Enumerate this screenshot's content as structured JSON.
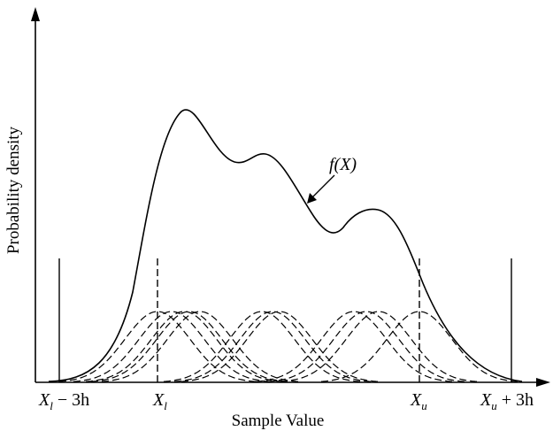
{
  "figure": {
    "ylabel": "Probability density",
    "xlabel": "Sample Value",
    "curve_label": "f(X)"
  },
  "x_ticks": {
    "xl_minus_3h": {
      "var": "X",
      "sub": "l",
      "suffix": " − 3h"
    },
    "xl": {
      "var": "X",
      "sub": "l"
    },
    "xu": {
      "var": "X",
      "sub": "u"
    },
    "xu_plus_3h": {
      "var": "X",
      "sub": "u",
      "suffix": " + 3h"
    }
  },
  "diagram": {
    "type": "kernel-density-estimate",
    "kernel_centers": [
      178,
      194,
      208,
      214,
      226,
      296,
      308,
      316,
      400,
      414,
      428,
      474
    ],
    "kernel_peak": 0.54,
    "domain_markers": {
      "xl_minus_3h": {
        "x": 67,
        "style": "solid"
      },
      "xl": {
        "x": 178,
        "style": "dashed"
      },
      "xu": {
        "x": 474,
        "style": "dashed"
      },
      "xu_plus_3h": {
        "x": 578,
        "style": "solid"
      }
    }
  }
}
